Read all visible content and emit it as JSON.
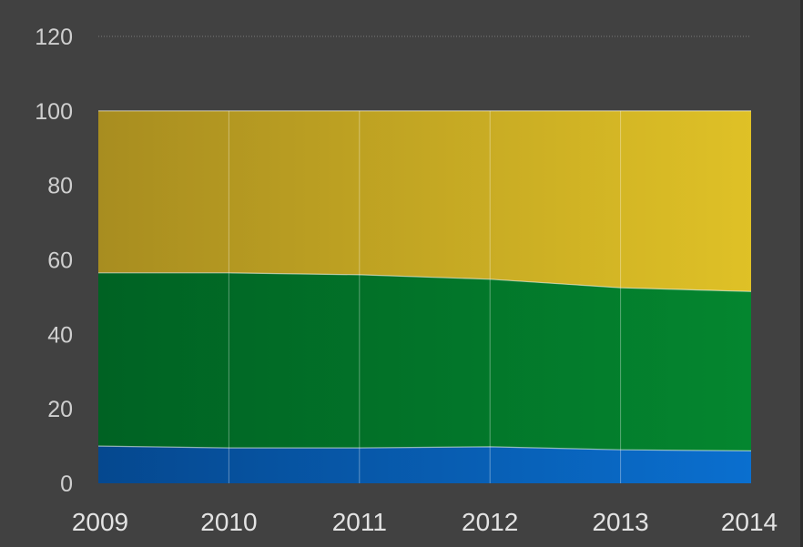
{
  "chart_data": {
    "type": "area",
    "stacked": true,
    "x": [
      "2009",
      "2010",
      "2011",
      "2012",
      "2013",
      "2014"
    ],
    "series": [
      {
        "values": [
          10,
          9.5,
          9.5,
          9.8,
          9,
          8.7
        ],
        "color": "#0a5ab0"
      },
      {
        "values": [
          46.5,
          47,
          46.5,
          45,
          43.5,
          42.8
        ],
        "color": "#0a7a2c"
      },
      {
        "values": [
          43.5,
          43.5,
          44,
          45.2,
          47.5,
          48.5
        ],
        "color": "#c8a822"
      }
    ],
    "ylim": [
      0,
      120
    ],
    "yticks": [
      "0",
      "20",
      "40",
      "60",
      "80",
      "100",
      "120"
    ],
    "xlabel": "",
    "ylabel": "",
    "title": "",
    "grid": {
      "vertical": true,
      "top_dotted_line": true
    },
    "background": "#414141"
  }
}
